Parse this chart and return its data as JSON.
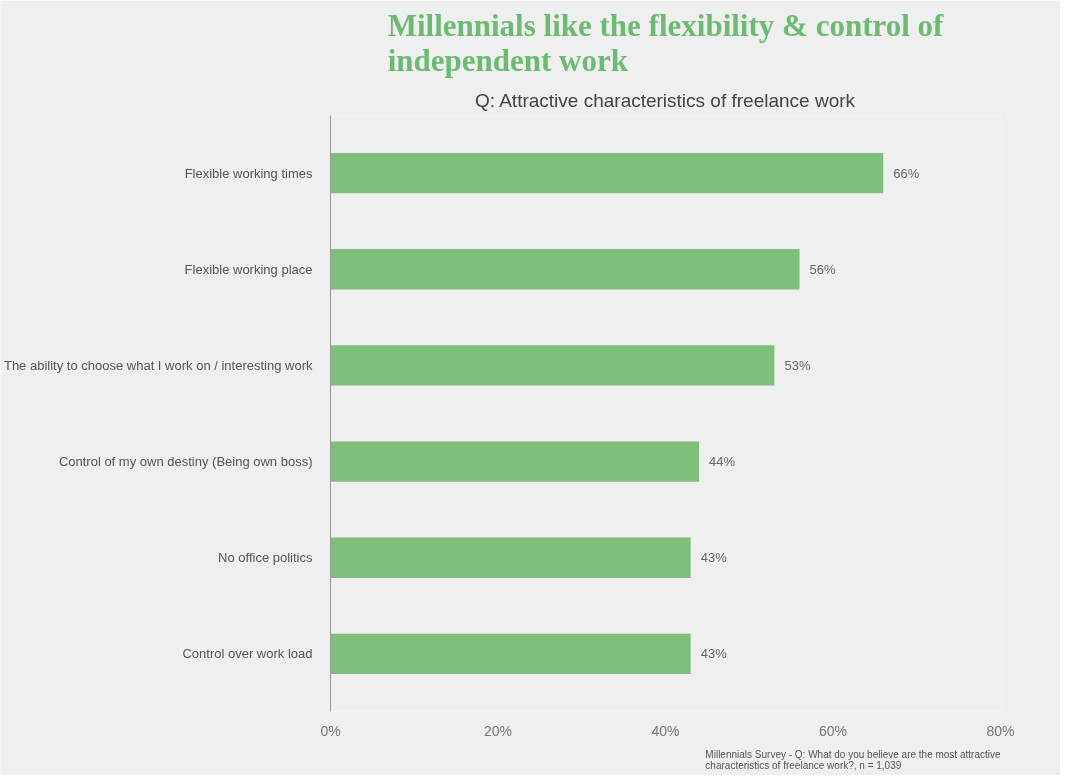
{
  "chart_data": {
    "type": "bar",
    "orientation": "horizontal",
    "title": "Millennials like the flexibility & control of independent work",
    "subtitle": "Q: Attractive characteristics of freelance work",
    "categories": [
      "Flexible working times",
      "Flexible working place",
      "The ability to choose what I work on / interesting work",
      "Control of my own destiny (Being own boss)",
      "No office politics",
      "Control over work load"
    ],
    "values": [
      66,
      56,
      53,
      44,
      43,
      43
    ],
    "value_labels": [
      "66%",
      "56%",
      "53%",
      "44%",
      "43%",
      "43%"
    ],
    "color": "#7dbf7b",
    "xlim": [
      0,
      80
    ],
    "xticks": [
      {
        "value": 0,
        "label": "0%"
      },
      {
        "value": 20,
        "label": "20%"
      },
      {
        "value": 40,
        "label": "40%"
      },
      {
        "value": 60,
        "label": "60%"
      },
      {
        "value": 80,
        "label": "80%"
      }
    ],
    "grid": false,
    "annotations": [
      "Millennials Survey - Q: What do you believe are the most attractive characteristics of freelance work?, n = 1,039"
    ]
  }
}
